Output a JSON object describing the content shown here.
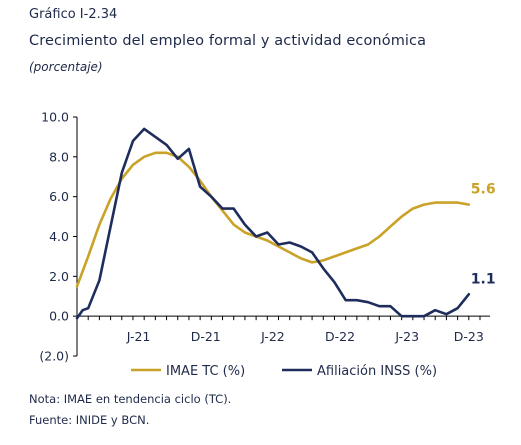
{
  "header": {
    "figure_label": "Gráfico I-2.34",
    "title": "Crecimiento del empleo formal y actividad económica",
    "subtitle": "(porcentaje)"
  },
  "footer": {
    "note": "Nota: IMAE en tendencia ciclo (TC).",
    "source": "Fuente: INIDE y BCN."
  },
  "colors": {
    "imae": "#c9a227",
    "inss": "#1f2d5c",
    "axis": "#000000"
  },
  "chart_data": {
    "type": "line",
    "ylim": [
      -2.0,
      10.0
    ],
    "yticks": [
      "10.0",
      "8.0",
      "6.0",
      "4.0",
      "2.0",
      "0.0",
      "(2.0)"
    ],
    "ytick_values": [
      10,
      8,
      6,
      4,
      2,
      0,
      -2
    ],
    "x_range": [
      0,
      36
    ],
    "xticks": [
      {
        "label": "J-21",
        "x": 5.5
      },
      {
        "label": "D-21",
        "x": 11.5
      },
      {
        "label": "J-22",
        "x": 17.5
      },
      {
        "label": "D-22",
        "x": 23.5
      },
      {
        "label": "J-23",
        "x": 29.5
      },
      {
        "label": "D-23",
        "x": 35
      }
    ],
    "legend_position": "bottom",
    "series": [
      {
        "name": "IMAE TC (%)",
        "color_key": "imae",
        "end_label": "5.6",
        "points": [
          [
            0,
            1.5
          ],
          [
            1,
            3.0
          ],
          [
            2,
            4.6
          ],
          [
            3,
            5.9
          ],
          [
            4,
            6.9
          ],
          [
            5,
            7.6
          ],
          [
            6,
            8.0
          ],
          [
            7,
            8.2
          ],
          [
            8,
            8.2
          ],
          [
            9,
            8.0
          ],
          [
            10,
            7.5
          ],
          [
            11,
            6.8
          ],
          [
            12,
            6.0
          ],
          [
            13,
            5.3
          ],
          [
            14,
            4.6
          ],
          [
            15,
            4.2
          ],
          [
            16,
            4.0
          ],
          [
            17,
            3.8
          ],
          [
            18,
            3.5
          ],
          [
            19,
            3.2
          ],
          [
            20,
            2.9
          ],
          [
            21,
            2.7
          ],
          [
            22,
            2.8
          ],
          [
            23,
            3.0
          ],
          [
            24,
            3.2
          ],
          [
            25,
            3.4
          ],
          [
            26,
            3.6
          ],
          [
            27,
            4.0
          ],
          [
            28,
            4.5
          ],
          [
            29,
            5.0
          ],
          [
            30,
            5.4
          ],
          [
            31,
            5.6
          ],
          [
            32,
            5.7
          ],
          [
            33,
            5.7
          ],
          [
            34,
            5.7
          ],
          [
            35,
            5.6
          ]
        ]
      },
      {
        "name": "Afiliación INSS (%)",
        "color_key": "inss",
        "end_label": "1.1",
        "points": [
          [
            0,
            -0.1
          ],
          [
            0.5,
            0.3
          ],
          [
            1,
            0.4
          ],
          [
            2,
            1.8
          ],
          [
            3,
            4.5
          ],
          [
            4,
            7.2
          ],
          [
            5,
            8.8
          ],
          [
            6,
            9.4
          ],
          [
            7,
            9.0
          ],
          [
            8,
            8.6
          ],
          [
            9,
            7.9
          ],
          [
            10,
            8.4
          ],
          [
            11,
            6.5
          ],
          [
            12,
            6.0
          ],
          [
            13,
            5.4
          ],
          [
            14,
            5.4
          ],
          [
            15,
            4.6
          ],
          [
            16,
            4.0
          ],
          [
            17,
            4.2
          ],
          [
            18,
            3.6
          ],
          [
            19,
            3.7
          ],
          [
            20,
            3.5
          ],
          [
            21,
            3.2
          ],
          [
            22,
            2.4
          ],
          [
            23,
            1.7
          ],
          [
            24,
            0.8
          ],
          [
            25,
            0.8
          ],
          [
            26,
            0.7
          ],
          [
            27,
            0.5
          ],
          [
            28,
            0.5
          ],
          [
            29,
            0.0
          ],
          [
            30,
            0.0
          ],
          [
            31,
            0.0
          ],
          [
            32,
            0.3
          ],
          [
            33,
            0.1
          ],
          [
            34,
            0.4
          ],
          [
            35,
            1.1
          ]
        ]
      }
    ]
  }
}
